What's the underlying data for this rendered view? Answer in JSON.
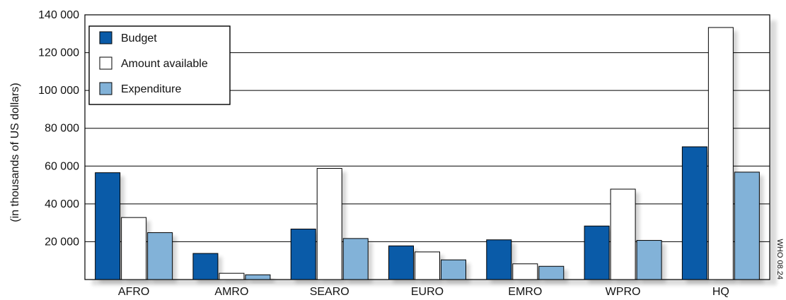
{
  "chart_data": {
    "type": "bar",
    "title": "",
    "xlabel": "",
    "ylabel": "(in thousands of US dollars)",
    "categories": [
      "AFRO",
      "AMRO",
      "SEARO",
      "EURO",
      "EMRO",
      "WPRO",
      "HQ"
    ],
    "series": [
      {
        "name": "Budget",
        "color": "#0a5ba8",
        "values": [
          56500,
          13800,
          26700,
          17800,
          21000,
          28300,
          70200
        ]
      },
      {
        "name": "Amount available",
        "color": "#ffffff",
        "values": [
          32800,
          3300,
          58800,
          14600,
          8300,
          47800,
          133300
        ]
      },
      {
        "name": "Expenditure",
        "color": "#82b2d8",
        "values": [
          24800,
          2500,
          21700,
          10400,
          7000,
          20700,
          56800
        ]
      }
    ],
    "ylim": [
      0,
      140000
    ],
    "yticks": [
      20000,
      40000,
      60000,
      80000,
      100000,
      120000,
      140000
    ],
    "ytick_labels": [
      "20 000",
      "40 000",
      "60 000",
      "80 000",
      "100 000",
      "120 000",
      "140 000"
    ],
    "grid": true,
    "legend_position": "top-left",
    "side_note": "WHO 08.24"
  }
}
